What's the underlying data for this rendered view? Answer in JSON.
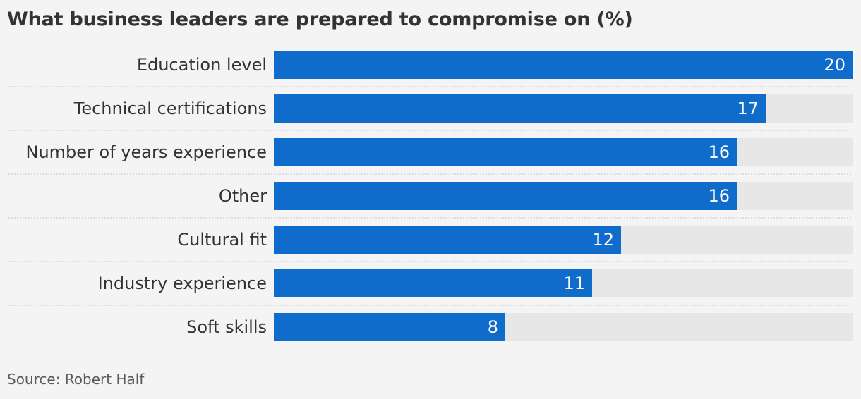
{
  "chart_data": {
    "type": "bar",
    "orientation": "horizontal",
    "title": "What business leaders are prepared to compromise on (%)",
    "categories": [
      "Education level",
      "Technical certifications",
      "Number of years experience",
      "Other",
      "Cultural fit",
      "Industry experience",
      "Soft skills"
    ],
    "values": [
      20,
      17,
      16,
      16,
      12,
      11,
      8
    ],
    "xlim": [
      0,
      20
    ],
    "grid": false,
    "legend": "none",
    "source": "Source: Robert Half"
  },
  "colors": {
    "bar": "#0f6ccb",
    "track": "#e7e7e7",
    "background": "#f4f4f4",
    "separator": "#c4c4c4"
  }
}
